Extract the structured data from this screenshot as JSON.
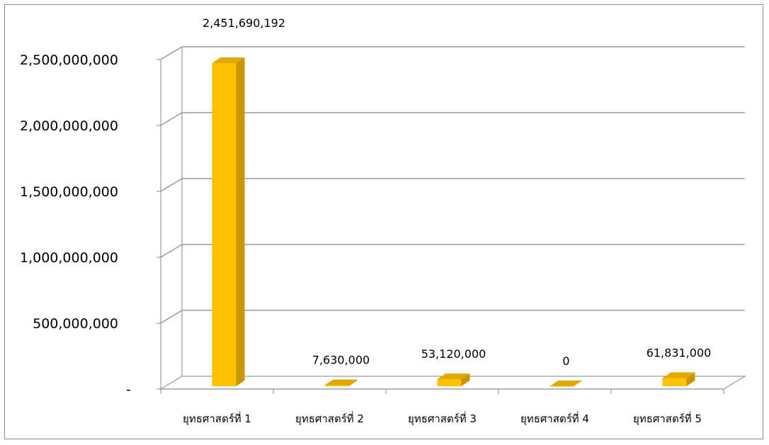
{
  "chart_data": {
    "type": "bar",
    "style": "3d-column",
    "categories": [
      "ยุทธศาสตร์ที่ 1",
      "ยุทธศาสตร์ที่ 2",
      "ยุทธศาสตร์ที่ 3",
      "ยุทธศาสตร์ที่ 4",
      "ยุทธศาสตร์ที่ 5"
    ],
    "values": [
      2451690192,
      7630000,
      53120000,
      0,
      61831000
    ],
    "data_labels": [
      "2,451,690,192",
      "7,630,000",
      "53,120,000",
      "0",
      "61,831,000"
    ],
    "ylim": [
      0,
      2500000000
    ],
    "yticks": [
      0,
      500000000,
      1000000000,
      1500000000,
      2000000000,
      2500000000
    ],
    "ytick_labels": [
      "-",
      "500,000,000",
      "1,000,000,000",
      "1,500,000,000",
      "2,000,000,000",
      "2,500,000,000"
    ],
    "title": "",
    "xlabel": "",
    "ylabel": "",
    "grid": true,
    "legend": "none",
    "colors": {
      "bar_front": "#FFC000",
      "bar_side": "#C89700",
      "bar_top": "#E0A800",
      "gridline": "#9a9a9a",
      "frame": "#8c8c8c"
    }
  }
}
